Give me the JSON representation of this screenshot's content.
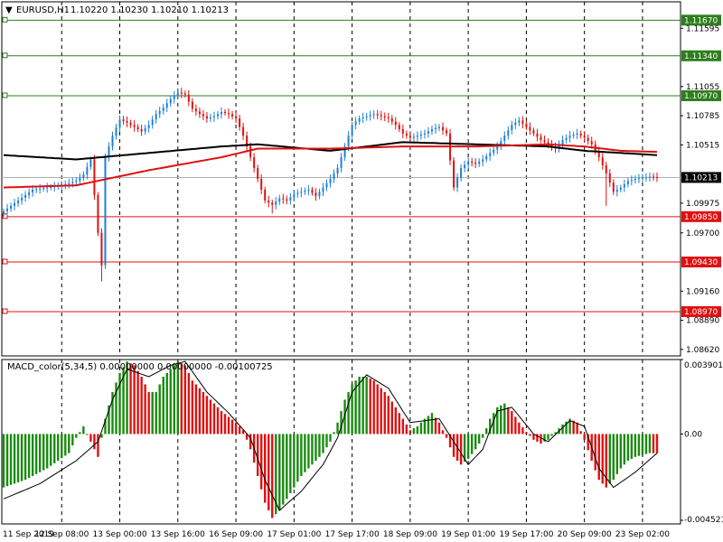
{
  "header": {
    "symbol": "EURUSD,H1",
    "ohlc": "1.10220 1.10230 1.10210 1.10213"
  },
  "macd_header": "MACD_color(5,34,5) 0.00000000 0.00000000 -0.00100725",
  "colors": {
    "bull_candle": "#1e7fd8",
    "bear_candle": "#e01010",
    "ma_fast": "#e01010",
    "ma_slow": "#000000",
    "support": "#e01010",
    "resistance": "#2e7d1e",
    "macd_up": "#1a8a10",
    "macd_down": "#e01010",
    "signal": "#000000",
    "grid": "#000000"
  },
  "chart_data": [
    {
      "type": "candlestick",
      "symbol": "EURUSD",
      "timeframe": "H1",
      "x_ticks": [
        "11 Sep 2019",
        "12 Sep 08:00",
        "13 Sep 00:00",
        "13 Sep 16:00",
        "16 Sep 09:00",
        "17 Sep 01:00",
        "17 Sep 17:00",
        "18 Sep 09:00",
        "19 Sep 01:00",
        "19 Sep 17:00",
        "20 Sep 09:00",
        "23 Sep 02:00"
      ],
      "y_ticks": [
        "1.11595",
        "1.11055",
        "1.10785",
        "1.10515",
        "1.09975",
        "1.09700",
        "1.09160",
        "1.08890",
        "1.08620"
      ],
      "current_price": "1.10213",
      "ylim": [
        1.0856,
        1.1184
      ],
      "levels": [
        {
          "label": "1.11670",
          "value": 1.1167,
          "kind": "resistance"
        },
        {
          "label": "1.11340",
          "value": 1.1134,
          "kind": "resistance"
        },
        {
          "label": "1.10970",
          "value": 1.1097,
          "kind": "resistance"
        },
        {
          "label": "1.09850",
          "value": 1.0985,
          "kind": "support"
        },
        {
          "label": "1.09430",
          "value": 1.0943,
          "kind": "support"
        },
        {
          "label": "1.08970",
          "value": 1.0897,
          "kind": "support"
        }
      ],
      "close_path": [
        [
          0,
          1.099
        ],
        [
          4,
          1.1
        ],
        [
          8,
          1.101
        ],
        [
          12,
          1.1012
        ],
        [
          16,
          1.1014
        ],
        [
          20,
          1.1018
        ],
        [
          22,
          1.1024
        ],
        [
          24,
          1.1038
        ],
        [
          25,
          1.1005
        ],
        [
          26,
          1.097
        ],
        [
          27,
          1.094
        ],
        [
          28,
          1.104
        ],
        [
          30,
          1.106
        ],
        [
          32,
          1.1075
        ],
        [
          34,
          1.1072
        ],
        [
          36,
          1.1068
        ],
        [
          38,
          1.1064
        ],
        [
          40,
          1.107
        ],
        [
          42,
          1.108
        ],
        [
          44,
          1.1086
        ],
        [
          46,
          1.1094
        ],
        [
          48,
          1.11
        ],
        [
          50,
          1.1098
        ],
        [
          52,
          1.1085
        ],
        [
          54,
          1.108
        ],
        [
          56,
          1.1076
        ],
        [
          58,
          1.1078
        ],
        [
          60,
          1.1082
        ],
        [
          62,
          1.108
        ],
        [
          64,
          1.1076
        ],
        [
          66,
          1.106
        ],
        [
          68,
          1.104
        ],
        [
          70,
          1.102
        ],
        [
          72,
          1.1
        ],
        [
          74,
          1.0996
        ],
        [
          76,
          1.1002
        ],
        [
          78,
          1.1
        ],
        [
          80,
          1.1006
        ],
        [
          82,
          1.1008
        ],
        [
          84,
          1.101
        ],
        [
          86,
          1.1004
        ],
        [
          88,
          1.1012
        ],
        [
          90,
          1.102
        ],
        [
          92,
          1.103
        ],
        [
          94,
          1.105
        ],
        [
          96,
          1.107
        ],
        [
          98,
          1.1076
        ],
        [
          100,
          1.1078
        ],
        [
          102,
          1.108
        ],
        [
          104,
          1.1078
        ],
        [
          106,
          1.1076
        ],
        [
          108,
          1.107
        ],
        [
          110,
          1.1062
        ],
        [
          112,
          1.1058
        ],
        [
          114,
          1.106
        ],
        [
          116,
          1.1062
        ],
        [
          118,
          1.1066
        ],
        [
          120,
          1.1068
        ],
        [
          122,
          1.1062
        ],
        [
          124,
          1.1012
        ],
        [
          126,
          1.103
        ],
        [
          128,
          1.1036
        ],
        [
          130,
          1.1034
        ],
        [
          132,
          1.1038
        ],
        [
          134,
          1.1044
        ],
        [
          136,
          1.105
        ],
        [
          138,
          1.106
        ],
        [
          140,
          1.107
        ],
        [
          142,
          1.1074
        ],
        [
          144,
          1.1068
        ],
        [
          146,
          1.1062
        ],
        [
          148,
          1.1056
        ],
        [
          150,
          1.1052
        ],
        [
          152,
          1.1048
        ],
        [
          154,
          1.1056
        ],
        [
          156,
          1.106
        ],
        [
          158,
          1.1062
        ],
        [
          160,
          1.1058
        ],
        [
          162,
          1.1052
        ],
        [
          164,
          1.104
        ],
        [
          166,
          1.1025
        ],
        [
          168,
          1.1008
        ],
        [
          170,
          1.1012
        ],
        [
          172,
          1.1018
        ],
        [
          174,
          1.102
        ],
        [
          176,
          1.1021
        ],
        [
          178,
          1.1022
        ],
        [
          180,
          1.10213
        ]
      ],
      "highs_lows": [
        {
          "index": 27,
          "low": 1.0925
        },
        {
          "index": 48,
          "high": 1.1104
        },
        {
          "index": 74,
          "low": 1.0988
        },
        {
          "index": 124,
          "low": 1.101
        },
        {
          "index": 166,
          "low": 1.0995
        }
      ],
      "ma_fast": [
        [
          0,
          1.1012
        ],
        [
          20,
          1.1014
        ],
        [
          40,
          1.1028
        ],
        [
          60,
          1.104
        ],
        [
          70,
          1.1048
        ],
        [
          90,
          1.1048
        ],
        [
          110,
          1.105
        ],
        [
          130,
          1.105
        ],
        [
          150,
          1.1052
        ],
        [
          160,
          1.105
        ],
        [
          170,
          1.1046
        ],
        [
          180,
          1.1045
        ]
      ],
      "ma_slow": [
        [
          0,
          1.1042
        ],
        [
          20,
          1.1038
        ],
        [
          40,
          1.1044
        ],
        [
          60,
          1.105
        ],
        [
          70,
          1.1052
        ],
        [
          90,
          1.1046
        ],
        [
          110,
          1.1054
        ],
        [
          130,
          1.1052
        ],
        [
          150,
          1.105
        ],
        [
          160,
          1.1046
        ],
        [
          170,
          1.1044
        ],
        [
          180,
          1.1042
        ]
      ]
    },
    {
      "type": "bar",
      "title": "MACD_color(5,34,5)",
      "y_ticks": [
        "0.0039013",
        "0.00",
        "-0.004521"
      ],
      "ylim": [
        -0.004521,
        0.0039013
      ],
      "hist_path": [
        [
          0,
          -0.0028
        ],
        [
          6,
          -0.0024
        ],
        [
          12,
          -0.0018
        ],
        [
          18,
          -0.001
        ],
        [
          20,
          -0.0002
        ],
        [
          22,
          0.0004
        ],
        [
          24,
          -0.0004
        ],
        [
          26,
          -0.0012
        ],
        [
          28,
          0.0008
        ],
        [
          30,
          0.0022
        ],
        [
          32,
          0.0032
        ],
        [
          34,
          0.0038
        ],
        [
          36,
          0.0036
        ],
        [
          38,
          0.003
        ],
        [
          40,
          0.0022
        ],
        [
          42,
          0.0022
        ],
        [
          44,
          0.003
        ],
        [
          46,
          0.0034
        ],
        [
          48,
          0.0038
        ],
        [
          50,
          0.0036
        ],
        [
          52,
          0.0028
        ],
        [
          54,
          0.0024
        ],
        [
          56,
          0.002
        ],
        [
          58,
          0.0016
        ],
        [
          60,
          0.0012
        ],
        [
          62,
          0.0009
        ],
        [
          64,
          0.0006
        ],
        [
          66,
          0.0002
        ],
        [
          68,
          -0.0008
        ],
        [
          70,
          -0.0022
        ],
        [
          72,
          -0.0036
        ],
        [
          74,
          -0.0044
        ],
        [
          76,
          -0.004
        ],
        [
          78,
          -0.0034
        ],
        [
          80,
          -0.0028
        ],
        [
          82,
          -0.0022
        ],
        [
          84,
          -0.0018
        ],
        [
          86,
          -0.0014
        ],
        [
          88,
          -0.001
        ],
        [
          90,
          -0.0004
        ],
        [
          92,
          0.0006
        ],
        [
          94,
          0.0018
        ],
        [
          96,
          0.0026
        ],
        [
          98,
          0.003
        ],
        [
          100,
          0.003
        ],
        [
          102,
          0.0028
        ],
        [
          104,
          0.0024
        ],
        [
          106,
          0.002
        ],
        [
          108,
          0.0014
        ],
        [
          110,
          0.0008
        ],
        [
          112,
          0.0002
        ],
        [
          114,
          0.0004
        ],
        [
          116,
          0.0008
        ],
        [
          118,
          0.0011
        ],
        [
          120,
          0.0006
        ],
        [
          122,
          -0.0002
        ],
        [
          124,
          -0.0012
        ],
        [
          126,
          -0.0016
        ],
        [
          128,
          -0.0013
        ],
        [
          130,
          -0.0008
        ],
        [
          132,
          -0.0002
        ],
        [
          134,
          0.0008
        ],
        [
          136,
          0.0014
        ],
        [
          138,
          0.0016
        ],
        [
          140,
          0.0012
        ],
        [
          142,
          0.0006
        ],
        [
          144,
          0.0001
        ],
        [
          146,
          -0.0003
        ],
        [
          148,
          -0.0005
        ],
        [
          150,
          -0.0003
        ],
        [
          152,
          0.0001
        ],
        [
          154,
          0.0005
        ],
        [
          156,
          0.0008
        ],
        [
          158,
          0.0006
        ],
        [
          160,
          -0.0003
        ],
        [
          162,
          -0.0014
        ],
        [
          164,
          -0.0024
        ],
        [
          166,
          -0.0028
        ],
        [
          168,
          -0.0024
        ],
        [
          170,
          -0.0018
        ],
        [
          172,
          -0.0014
        ],
        [
          174,
          -0.0012
        ],
        [
          176,
          -0.0011
        ],
        [
          178,
          -0.001
        ],
        [
          180,
          -0.00100725
        ]
      ],
      "signal_path": [
        [
          0,
          -0.0034
        ],
        [
          10,
          -0.0026
        ],
        [
          20,
          -0.0014
        ],
        [
          26,
          -0.0004
        ],
        [
          30,
          0.0018
        ],
        [
          34,
          0.0034
        ],
        [
          40,
          0.003
        ],
        [
          46,
          0.0036
        ],
        [
          50,
          0.0038
        ],
        [
          56,
          0.0022
        ],
        [
          62,
          0.0011
        ],
        [
          68,
          -0.0002
        ],
        [
          72,
          -0.0024
        ],
        [
          76,
          -0.004
        ],
        [
          82,
          -0.003
        ],
        [
          88,
          -0.0016
        ],
        [
          92,
          -0.0002
        ],
        [
          96,
          0.0022
        ],
        [
          100,
          0.0031
        ],
        [
          106,
          0.0024
        ],
        [
          112,
          0.0006
        ],
        [
          116,
          0.0007
        ],
        [
          120,
          0.0008
        ],
        [
          124,
          -0.0004
        ],
        [
          128,
          -0.0016
        ],
        [
          132,
          -0.0008
        ],
        [
          136,
          0.0012
        ],
        [
          140,
          0.0014
        ],
        [
          146,
          0.0
        ],
        [
          150,
          -0.0004
        ],
        [
          156,
          0.0007
        ],
        [
          160,
          0.0004
        ],
        [
          164,
          -0.0018
        ],
        [
          168,
          -0.0028
        ],
        [
          174,
          -0.002
        ],
        [
          180,
          -0.001
        ]
      ]
    }
  ]
}
